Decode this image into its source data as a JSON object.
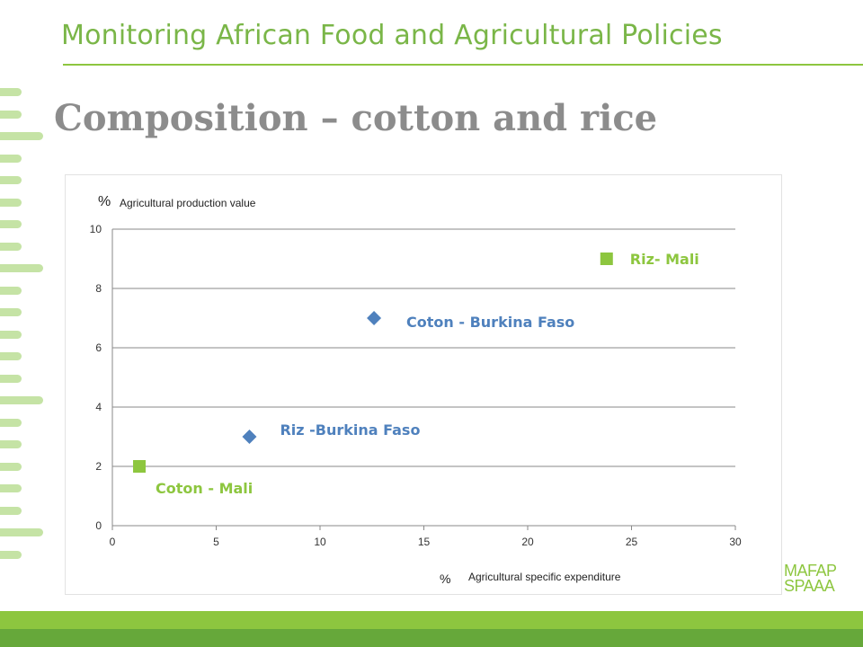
{
  "header": {
    "title": "Monitoring African Food and Agricultural Policies"
  },
  "slide": {
    "title": "Composition – cotton and rice"
  },
  "logo": {
    "line1": "MAFAP",
    "line2": "SPAAA"
  },
  "colors": {
    "accent": "#8dc63f",
    "mali": "#8dc63f",
    "burkina": "#4f81bd"
  },
  "chart_data": {
    "type": "scatter",
    "ylabel_symbol": "%",
    "ylabel": "Agricultural production value",
    "xlabel_symbol": "%",
    "xlabel": "Agricultural specific expenditure",
    "xlim": [
      0,
      30
    ],
    "ylim": [
      0,
      10
    ],
    "xticks": [
      "0",
      "5",
      "10",
      "15",
      "20",
      "25",
      "30"
    ],
    "yticks": [
      "0",
      "2",
      "4",
      "6",
      "8",
      "10"
    ],
    "grid": true,
    "points": [
      {
        "label": "Coton - Mali",
        "x": 1.3,
        "y": 2.0,
        "marker": "square",
        "color": "#8dc63f"
      },
      {
        "label": "Riz -Burkina Faso",
        "x": 6.6,
        "y": 3.0,
        "marker": "diamond",
        "color": "#4f81bd"
      },
      {
        "label": "Coton - Burkina Faso",
        "x": 12.6,
        "y": 7.0,
        "marker": "diamond",
        "color": "#4f81bd"
      },
      {
        "label": "Riz- Mali",
        "x": 23.8,
        "y": 9.0,
        "marker": "square",
        "color": "#8dc63f"
      }
    ]
  }
}
